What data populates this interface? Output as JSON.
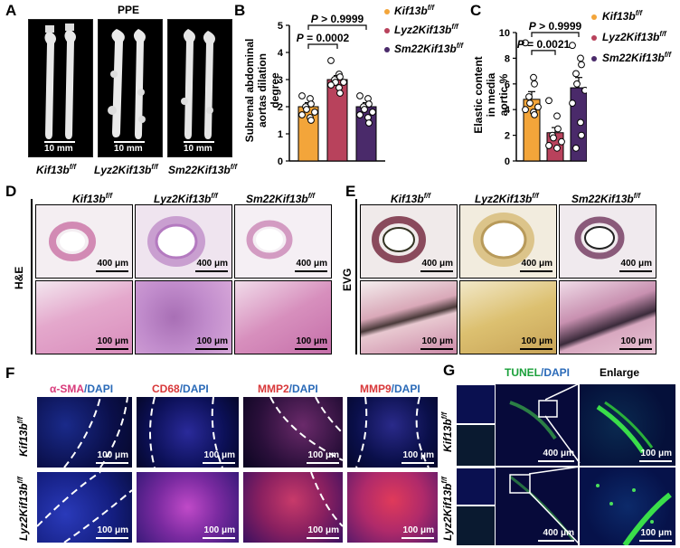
{
  "panel_labels": {
    "a": "A",
    "b": "B",
    "c": "C",
    "d": "D",
    "e": "E",
    "f": "F",
    "g": "G"
  },
  "panel_a": {
    "title": "PPE",
    "groups": [
      "Kif13b",
      "Lyz2Kif13b",
      "Sm22Kif13b"
    ],
    "sup": "f/f",
    "scale": "10 mm"
  },
  "colors": {
    "kif": "#f3a53a",
    "lyz": "#b8425c",
    "sm22": "#4a2a6a"
  },
  "chart_data": [
    {
      "type": "bar",
      "ylabel": "Subrenal abdominal aortas dilation degree",
      "ylim": [
        0,
        5
      ],
      "yticks": [
        0,
        1,
        2,
        3,
        4,
        5
      ],
      "categories": [
        "Kif13b",
        "Lyz2Kif13b",
        "Sm22Kif13b"
      ],
      "values": [
        2.0,
        3.0,
        2.0
      ],
      "errors": [
        0.15,
        0.15,
        0.15
      ],
      "points": [
        [
          2.4,
          2.3,
          2.1,
          2.0,
          1.9,
          1.8,
          1.7,
          1.6,
          1.5
        ],
        [
          3.7,
          3.2,
          3.1,
          3.0,
          2.9,
          2.9,
          2.8,
          2.7,
          2.5
        ],
        [
          2.4,
          2.3,
          2.1,
          2.0,
          1.9,
          1.8,
          1.7,
          1.6,
          1.4
        ]
      ],
      "comparisons": [
        {
          "text": "P = 0.0002",
          "pair": [
            0,
            1
          ]
        },
        {
          "text": "P > 0.9999",
          "pair": [
            0,
            2
          ]
        }
      ],
      "legend": [
        "Kif13b",
        "Lyz2Kif13b",
        "Sm22Kif13b"
      ],
      "legend_sup": "f/f",
      "legend_position": "right"
    },
    {
      "type": "bar",
      "ylabel": "Elastic content in media aortic %",
      "ylim": [
        0,
        10
      ],
      "yticks": [
        0,
        2,
        4,
        6,
        8,
        10
      ],
      "categories": [
        "Kif13b",
        "Lyz2Kif13b",
        "Sm22Kif13b"
      ],
      "values": [
        4.8,
        2.2,
        5.7
      ],
      "errors": [
        0.6,
        0.4,
        0.8
      ],
      "points": [
        [
          9.2,
          6.5,
          6.0,
          5.0,
          4.5,
          4.2,
          4.0,
          3.8,
          3.6
        ],
        [
          4.7,
          3.5,
          2.5,
          2.0,
          1.8,
          1.5,
          1.2,
          1.0
        ],
        [
          9.0,
          8.0,
          7.5,
          6.8,
          6.0,
          5.5,
          4.5,
          3.0,
          2.0,
          1.0
        ]
      ],
      "comparisons": [
        {
          "text": "P = 0.0021",
          "pair": [
            0,
            1
          ]
        },
        {
          "text": "P > 0.9999",
          "pair": [
            0,
            2
          ]
        }
      ],
      "legend": [
        "Kif13b",
        "Lyz2Kif13b",
        "Sm22Kif13b"
      ],
      "legend_sup": "f/f",
      "legend_position": "right"
    }
  ],
  "panel_d": {
    "side": "H&E",
    "cols": [
      "Kif13b",
      "Lyz2Kif13b",
      "Sm22Kif13b"
    ],
    "sup": "f/f",
    "top_scale": "400 μm",
    "bottom_scale": "100 μm"
  },
  "panel_e": {
    "side": "EVG",
    "cols": [
      "Kif13b",
      "Lyz2Kif13b",
      "Sm22Kif13b"
    ],
    "sup": "f/f",
    "top_scale": "400 μm",
    "bottom_scale": "100 μm"
  },
  "panel_f": {
    "cols": [
      {
        "marker": "α-SMA",
        "dapi": "/DAPI"
      },
      {
        "marker": "CD68",
        "dapi": "/DAPI"
      },
      {
        "marker": "MMP2",
        "dapi": "/DAPI"
      },
      {
        "marker": "MMP9",
        "dapi": "/DAPI"
      }
    ],
    "rows": [
      "Kif13b",
      "Lyz2Kif13b"
    ],
    "sup": "f/f",
    "scale": "100 μm"
  },
  "panel_g": {
    "title_tunel": "TUNEL",
    "title_dapi": "/DAPI",
    "enlarge": "Enlarge",
    "rows": [
      "Kif13b",
      "Lyz2Kif13b"
    ],
    "sup": "f/f",
    "scale_main": "400 μm",
    "scale_enlarge": "100 μm"
  }
}
